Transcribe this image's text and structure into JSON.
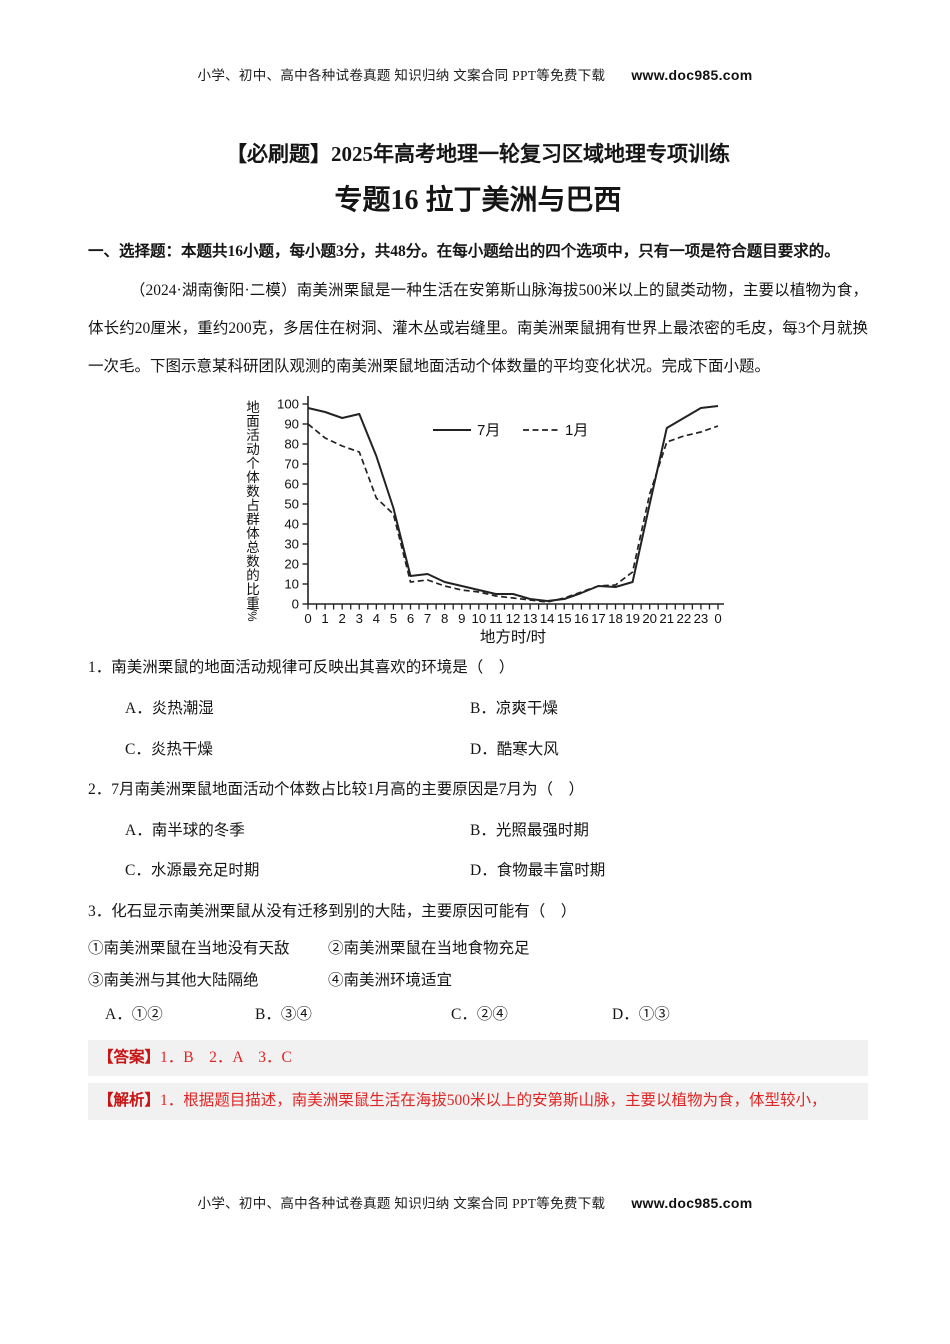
{
  "page": {
    "header": {
      "text": "小学、初中、高中各种试卷真题 知识归纳 文案合同 PPT等免费下载",
      "site": "www.doc985.com"
    },
    "footer": {
      "text": "小学、初中、高中各种试卷真题 知识归纳 文案合同 PPT等免费下载",
      "site": "www.doc985.com"
    },
    "title": "【必刷题】2025年高考地理一轮复习区域地理专项训练",
    "subtitle": "专题16 拉丁美洲与巴西",
    "section_heading": "一、选择题：本题共16小题，每小题3分，共48分。在每小题给出的四个选项中，只有一项是符合题目要求的。",
    "intro": "（2024·湖南衡阳·二模）南美洲栗鼠是一种生活在安第斯山脉海拔500米以上的鼠类动物，主要以植物为食，体长约20厘米，重约200克，多居住在树洞、灌木丛或岩缝里。南美洲栗鼠拥有世界上最浓密的毛皮，每3个月就换一次毛。下图示意某科研团队观测的南美洲栗鼠地面活动个体数量的平均变化状况。完成下面小题。"
  },
  "questions": [
    {
      "stem": "1．南美洲栗鼠的地面活动规律可反映出其喜欢的环境是（　）",
      "options": [
        "A．炎热潮湿",
        "B．凉爽干燥",
        "C．炎热干燥",
        "D．酷寒大风"
      ]
    },
    {
      "stem": "2．7月南美洲栗鼠地面活动个体数占比较1月高的主要原因是7月为（　）",
      "options": [
        "A．南半球的冬季",
        "B．光照最强时期",
        "C．水源最充足时期",
        "D．食物最丰富时期"
      ]
    },
    {
      "stem": "3．化石显示南美洲栗鼠从没有迁移到别的大陆，主要原因可能有（　）",
      "statements": [
        "①南美洲栗鼠在当地没有天敌",
        "②南美洲栗鼠在当地食物充足",
        "③南美洲与其他大陆隔绝",
        "④南美洲环境适宜"
      ],
      "options": [
        "A．①②",
        "B．③④",
        "C．②④",
        "D．①③"
      ]
    }
  ],
  "answer": {
    "label": "【答案】",
    "text": "1．B　2．A　3．C"
  },
  "analysis": {
    "label": "【解析】",
    "text": "1．根据题目描述，南美洲栗鼠生活在海拔500米以上的安第斯山脉，主要以植物为食，体型较小，"
  },
  "colors": {
    "band_bg": "#f1f1f1",
    "answer_red": "#e02525",
    "label_red": "#c81414",
    "ink": "#151515"
  },
  "chart_data": {
    "type": "line",
    "x_hours": [
      0,
      1,
      2,
      3,
      4,
      5,
      6,
      7,
      8,
      9,
      10,
      11,
      12,
      13,
      14,
      15,
      16,
      17,
      18,
      19,
      20,
      21,
      22,
      23,
      24
    ],
    "x_tick_labels": [
      "0",
      "1",
      "2",
      "3",
      "4",
      "5",
      "6",
      "7",
      "8",
      "9",
      "10",
      "11",
      "12",
      "13",
      "14",
      "15",
      "16",
      "17",
      "18",
      "19",
      "20",
      "21",
      "22",
      "23",
      "0"
    ],
    "xlabel": "地方时/时",
    "ylabel": "地面活动个体数占群体总数的比重/%",
    "ylim": [
      0,
      100
    ],
    "yticks": [
      0,
      10,
      20,
      30,
      40,
      50,
      60,
      70,
      80,
      90,
      100
    ],
    "grid": false,
    "legend_position": "top-center-inside",
    "series": [
      {
        "name": "7月",
        "style": "solid",
        "values": [
          98,
          96,
          93,
          95,
          74,
          48,
          14,
          15,
          11,
          9,
          7,
          5,
          5,
          2.5,
          1.5,
          2.5,
          5.5,
          9,
          8.5,
          11,
          50,
          88,
          93,
          98,
          99
        ]
      },
      {
        "name": "1月",
        "style": "dashed",
        "values": [
          90,
          83,
          79,
          76,
          53,
          45,
          11,
          12,
          9,
          7,
          6,
          4,
          3,
          2,
          1,
          3,
          6,
          9,
          9.5,
          16,
          55,
          81,
          84,
          86,
          89
        ]
      }
    ]
  }
}
